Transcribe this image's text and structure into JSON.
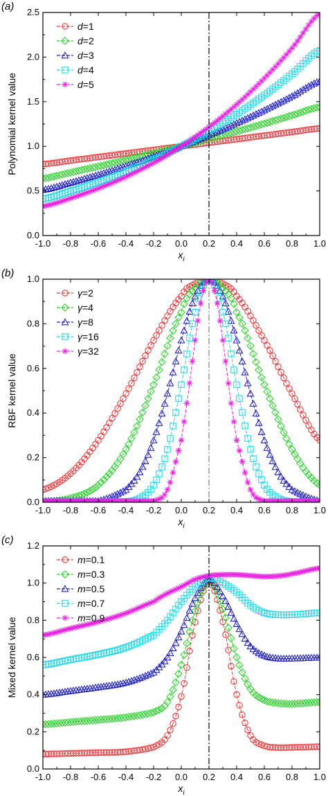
{
  "chart_data": [
    {
      "panel": "(a)",
      "type": "scatter",
      "xlabel_main": "x",
      "xlabel_sub": "i",
      "ylabel": "Polynomial kernel value",
      "xlim": [
        -1.0,
        1.0
      ],
      "ylim": [
        0.0,
        2.5
      ],
      "xticks": [
        "-1.0",
        "-0.8",
        "-0.6",
        "-0.4",
        "-0.2",
        "0.0",
        "0.2",
        "0.4",
        "0.6",
        "0.8",
        "1.0"
      ],
      "yticks": [
        "0.0",
        "0.5",
        "1.0",
        "1.5",
        "2.0",
        "2.5"
      ],
      "vline_x": 0.2,
      "series": [
        {
          "name_var": "d",
          "name_val": "=1",
          "color": "#e8383b",
          "marker": "circle",
          "x": [
            -1.0,
            -0.8,
            -0.6,
            -0.4,
            -0.2,
            0.0,
            0.2,
            0.4,
            0.6,
            0.8,
            1.0
          ],
          "y": [
            0.8,
            0.84,
            0.88,
            0.92,
            0.96,
            1.0,
            1.04,
            1.08,
            1.12,
            1.16,
            1.2
          ]
        },
        {
          "name_var": "d",
          "name_val": "=2",
          "color": "#2ed12e",
          "marker": "diamond",
          "x": [
            -1.0,
            -0.8,
            -0.6,
            -0.4,
            -0.2,
            0.0,
            0.2,
            0.4,
            0.6,
            0.8,
            1.0
          ],
          "y": [
            0.64,
            0.706,
            0.774,
            0.846,
            0.922,
            1.0,
            1.082,
            1.166,
            1.254,
            1.346,
            1.44
          ]
        },
        {
          "name_var": "d",
          "name_val": "=3",
          "color": "#2424b8",
          "marker": "triangle",
          "x": [
            -1.0,
            -0.8,
            -0.6,
            -0.4,
            -0.2,
            0.0,
            0.2,
            0.4,
            0.6,
            0.8,
            1.0
          ],
          "y": [
            0.512,
            0.593,
            0.681,
            0.779,
            0.885,
            1.0,
            1.125,
            1.26,
            1.405,
            1.561,
            1.728
          ]
        },
        {
          "name_var": "d",
          "name_val": "=4",
          "color": "#22d8e6",
          "marker": "square",
          "x": [
            -1.0,
            -0.8,
            -0.6,
            -0.4,
            -0.2,
            0.0,
            0.2,
            0.4,
            0.6,
            0.8,
            1.0
          ],
          "y": [
            0.41,
            0.498,
            0.6,
            0.716,
            0.849,
            1.0,
            1.17,
            1.36,
            1.574,
            1.811,
            2.074
          ]
        },
        {
          "name_var": "d",
          "name_val": "=5",
          "color": "#e81ee0",
          "marker": "star",
          "x": [
            -1.0,
            -0.8,
            -0.6,
            -0.4,
            -0.2,
            0.0,
            0.2,
            0.4,
            0.6,
            0.8,
            1.0
          ],
          "y": [
            0.328,
            0.418,
            0.528,
            0.659,
            0.815,
            1.0,
            1.217,
            1.469,
            1.762,
            2.1,
            2.488
          ]
        }
      ]
    },
    {
      "panel": "(b)",
      "type": "scatter",
      "xlabel_main": "x",
      "xlabel_sub": "i",
      "ylabel": "RBF kernel value",
      "xlim": [
        -1.0,
        1.0
      ],
      "ylim": [
        0.0,
        1.0
      ],
      "xticks": [
        "-1.0",
        "-0.8",
        "-0.6",
        "-0.4",
        "-0.2",
        "0.0",
        "0.2",
        "0.4",
        "0.6",
        "0.8",
        "1.0"
      ],
      "yticks": [
        "0.0",
        "0.2",
        "0.4",
        "0.6",
        "0.8",
        "1.0"
      ],
      "vline_x": 0.2,
      "series": [
        {
          "name_var": "γ",
          "name_val": "=2",
          "color": "#e8383b",
          "marker": "circle",
          "x": [
            -1.0,
            -0.8,
            -0.6,
            -0.4,
            -0.2,
            0.0,
            0.1,
            0.2,
            0.3,
            0.4,
            0.6,
            0.8,
            1.0
          ],
          "y": [
            0.056,
            0.129,
            0.278,
            0.487,
            0.726,
            0.923,
            0.98,
            1.0,
            0.98,
            0.923,
            0.726,
            0.487,
            0.278
          ]
        },
        {
          "name_var": "γ",
          "name_val": "=4",
          "color": "#2ed12e",
          "marker": "diamond",
          "x": [
            -1.0,
            -0.8,
            -0.6,
            -0.4,
            -0.2,
            0.0,
            0.1,
            0.2,
            0.3,
            0.4,
            0.6,
            0.8,
            1.0
          ],
          "y": [
            0.003,
            0.018,
            0.077,
            0.237,
            0.527,
            0.852,
            0.961,
            1.0,
            0.961,
            0.852,
            0.527,
            0.237,
            0.077
          ]
        },
        {
          "name_var": "γ",
          "name_val": "=8",
          "color": "#2424b8",
          "marker": "triangle",
          "x": [
            -0.6,
            -0.4,
            -0.3,
            -0.2,
            -0.1,
            0.0,
            0.1,
            0.2,
            0.3,
            0.4,
            0.5,
            0.6,
            0.7,
            0.8,
            1.0
          ],
          "y": [
            0.006,
            0.056,
            0.135,
            0.278,
            0.487,
            0.726,
            0.923,
            1.0,
            0.923,
            0.726,
            0.487,
            0.278,
            0.135,
            0.056,
            0.006
          ]
        },
        {
          "name_var": "γ",
          "name_val": "=16",
          "color": "#22d8e6",
          "marker": "square",
          "x": [
            -0.4,
            -0.3,
            -0.2,
            -0.1,
            0.0,
            0.1,
            0.15,
            0.2,
            0.25,
            0.3,
            0.4,
            0.5,
            0.6,
            0.7,
            0.8
          ],
          "y": [
            0.003,
            0.018,
            0.077,
            0.237,
            0.527,
            0.852,
            0.961,
            1.0,
            0.961,
            0.852,
            0.527,
            0.237,
            0.077,
            0.018,
            0.003
          ]
        },
        {
          "name_var": "γ",
          "name_val": "=32",
          "color": "#e81ee0",
          "marker": "star",
          "x": [
            -0.2,
            -0.1,
            0.0,
            0.05,
            0.1,
            0.15,
            0.2,
            0.25,
            0.3,
            0.35,
            0.4,
            0.5,
            0.6
          ],
          "y": [
            0.006,
            0.056,
            0.278,
            0.487,
            0.726,
            0.923,
            1.0,
            0.923,
            0.726,
            0.487,
            0.278,
            0.056,
            0.006
          ]
        }
      ]
    },
    {
      "panel": "(c)",
      "type": "scatter",
      "xlabel_main": "x",
      "xlabel_sub": "i",
      "ylabel": "Mixed kernel value",
      "xlim": [
        -1.0,
        1.0
      ],
      "ylim": [
        0.0,
        1.2
      ],
      "xticks": [
        "-1.0",
        "-0.8",
        "-0.6",
        "-0.4",
        "-0.2",
        "0.0",
        "0.2",
        "0.4",
        "0.6",
        "0.8",
        "1.0"
      ],
      "yticks": [
        "0.0",
        "0.2",
        "0.4",
        "0.6",
        "0.8",
        "1.0",
        "1.2"
      ],
      "vline_x": 0.2,
      "series": [
        {
          "name_var": "m",
          "name_val": "=0.1",
          "color": "#e8383b",
          "marker": "circle",
          "x": [
            -1.0,
            -0.8,
            -0.6,
            -0.4,
            -0.2,
            -0.1,
            0.0,
            0.1,
            0.2,
            0.3,
            0.4,
            0.5,
            0.6,
            0.7,
            0.8,
            1.0
          ],
          "y": [
            0.08,
            0.084,
            0.088,
            0.093,
            0.118,
            0.18,
            0.39,
            0.79,
            1.004,
            0.792,
            0.4,
            0.18,
            0.125,
            0.115,
            0.116,
            0.12
          ]
        },
        {
          "name_var": "m",
          "name_val": "=0.3",
          "color": "#2ed12e",
          "marker": "diamond",
          "x": [
            -1.0,
            -0.8,
            -0.6,
            -0.4,
            -0.2,
            -0.1,
            0.0,
            0.1,
            0.2,
            0.3,
            0.4,
            0.5,
            0.6,
            0.7,
            0.8,
            1.0
          ],
          "y": [
            0.24,
            0.252,
            0.264,
            0.278,
            0.305,
            0.36,
            0.56,
            0.85,
            1.012,
            0.86,
            0.6,
            0.43,
            0.37,
            0.354,
            0.35,
            0.36
          ]
        },
        {
          "name_var": "m",
          "name_val": "=0.5",
          "color": "#2424b8",
          "marker": "triangle",
          "x": [
            -1.0,
            -0.8,
            -0.6,
            -0.4,
            -0.2,
            -0.1,
            0.0,
            0.1,
            0.2,
            0.3,
            0.4,
            0.5,
            0.6,
            0.7,
            0.8,
            1.0
          ],
          "y": [
            0.4,
            0.42,
            0.44,
            0.465,
            0.52,
            0.6,
            0.74,
            0.92,
            1.02,
            0.93,
            0.78,
            0.66,
            0.61,
            0.595,
            0.595,
            0.6
          ]
        },
        {
          "name_var": "m",
          "name_val": "=0.7",
          "color": "#22d8e6",
          "marker": "square",
          "x": [
            -1.0,
            -0.8,
            -0.6,
            -0.4,
            -0.2,
            -0.1,
            0.0,
            0.1,
            0.2,
            0.3,
            0.4,
            0.5,
            0.6,
            0.7,
            0.8,
            1.0
          ],
          "y": [
            0.56,
            0.588,
            0.616,
            0.654,
            0.72,
            0.8,
            0.9,
            0.98,
            1.028,
            1.0,
            0.95,
            0.88,
            0.84,
            0.83,
            0.83,
            0.84
          ]
        },
        {
          "name_var": "m",
          "name_val": "=0.9",
          "color": "#e81ee0",
          "marker": "star",
          "x": [
            -1.0,
            -0.8,
            -0.6,
            -0.4,
            -0.2,
            -0.1,
            0.0,
            0.1,
            0.2,
            0.3,
            0.4,
            0.5,
            0.6,
            0.7,
            0.8,
            1.0
          ],
          "y": [
            0.72,
            0.756,
            0.792,
            0.838,
            0.9,
            0.945,
            0.98,
            1.02,
            1.04,
            1.045,
            1.045,
            1.04,
            1.035,
            1.038,
            1.05,
            1.08
          ]
        }
      ]
    }
  ]
}
